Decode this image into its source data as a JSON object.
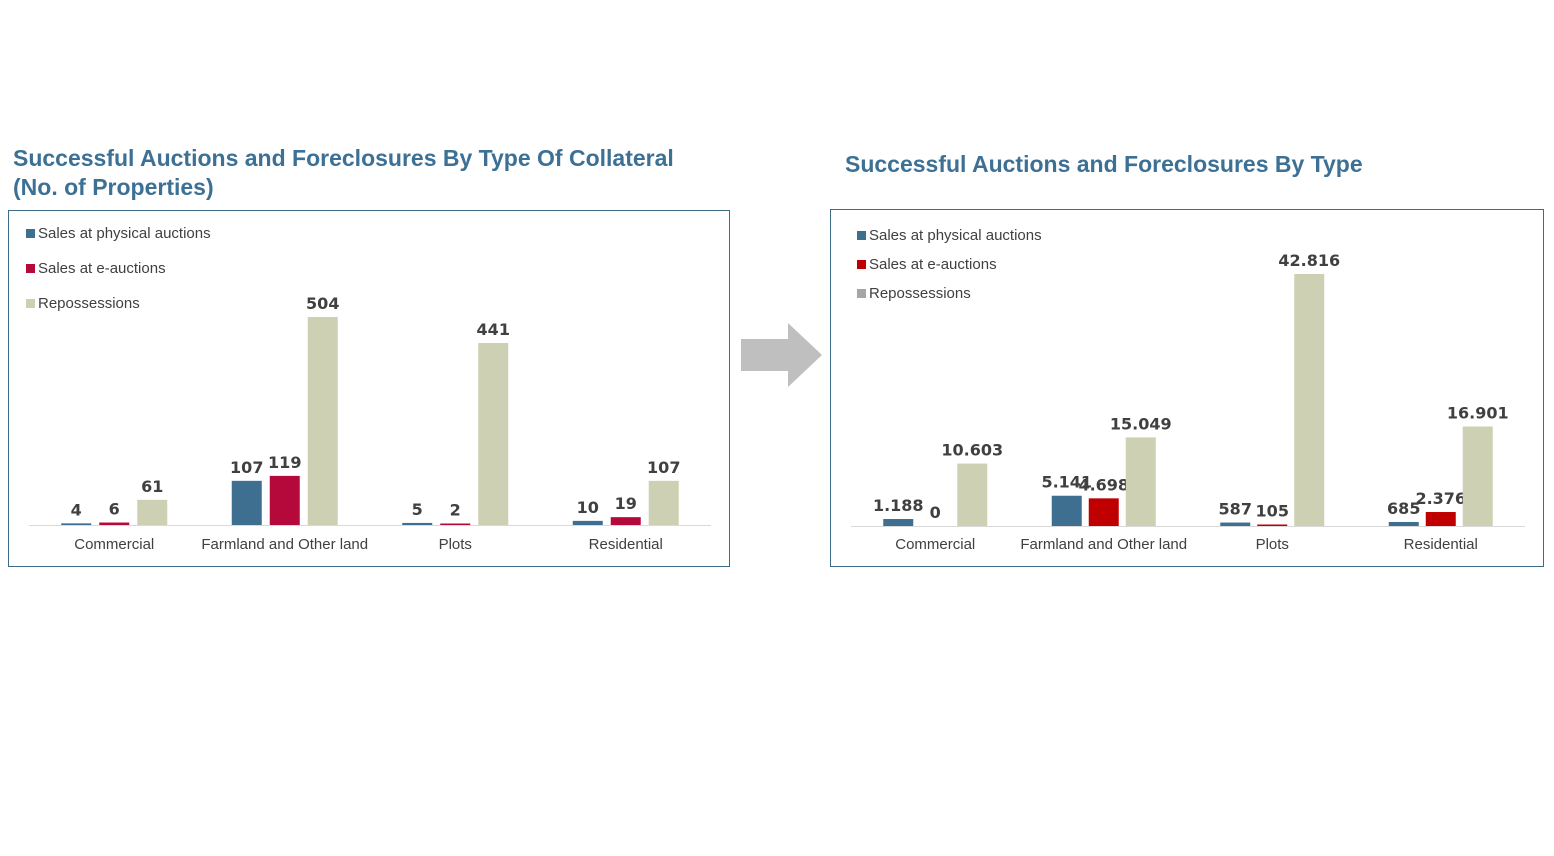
{
  "chart_data": [
    {
      "type": "bar",
      "title": "Successful Auctions and Foreclosures By Type Of Collateral (No. of Properties)",
      "categories": [
        "Commercial",
        "Farmland and Other land",
        "Plots",
        "Residential"
      ],
      "series": [
        {
          "name": "Sales at physical auctions",
          "values": [
            4,
            107,
            5,
            10
          ],
          "labels": [
            "4",
            "107",
            "5",
            "10"
          ],
          "color": "#3e6f91"
        },
        {
          "name": "Sales at e-auctions",
          "values": [
            6,
            119,
            2,
            19
          ],
          "labels": [
            "6",
            "119",
            "2",
            "19"
          ],
          "color": "#b5093c"
        },
        {
          "name": "Repossessions",
          "values": [
            61,
            504,
            441,
            107
          ],
          "labels": [
            "61",
            "504",
            "441",
            "107"
          ],
          "color": "#cdd0b3"
        }
      ],
      "ylim": [
        0,
        504
      ],
      "grid": false,
      "legend": "top-left"
    },
    {
      "type": "bar",
      "title": "Successful Auctions and Foreclosures By Type",
      "categories": [
        "Commercial",
        "Farmland and Other land",
        "Plots",
        "Residential"
      ],
      "series": [
        {
          "name": "Sales at physical auctions",
          "values": [
            1188,
            5141,
            587,
            685
          ],
          "labels": [
            "1.188",
            "5.141",
            "587",
            "685"
          ],
          "color": "#3e6f91",
          "legend_color": "#3e6f91"
        },
        {
          "name": "Sales at e-auctions",
          "values": [
            0,
            4698,
            105,
            2376
          ],
          "labels": [
            "0",
            "4.698",
            "105",
            "2.376"
          ],
          "color": "#c00000",
          "legend_color": "#c00000"
        },
        {
          "name": "Repossessions",
          "values": [
            10603,
            15049,
            42816,
            16901
          ],
          "labels": [
            "10.603",
            "15.049",
            "42.816",
            "16.901"
          ],
          "color": "#cdd0b3",
          "legend_color": "#a6a6a6"
        }
      ],
      "ylim": [
        0,
        42816
      ],
      "grid": false,
      "legend": "top-left"
    }
  ],
  "arrow_icon": "right-arrow-icon",
  "colors": {
    "title": "#3c7095",
    "border": "#3b6d88",
    "arrow": "#bfbfbf"
  }
}
